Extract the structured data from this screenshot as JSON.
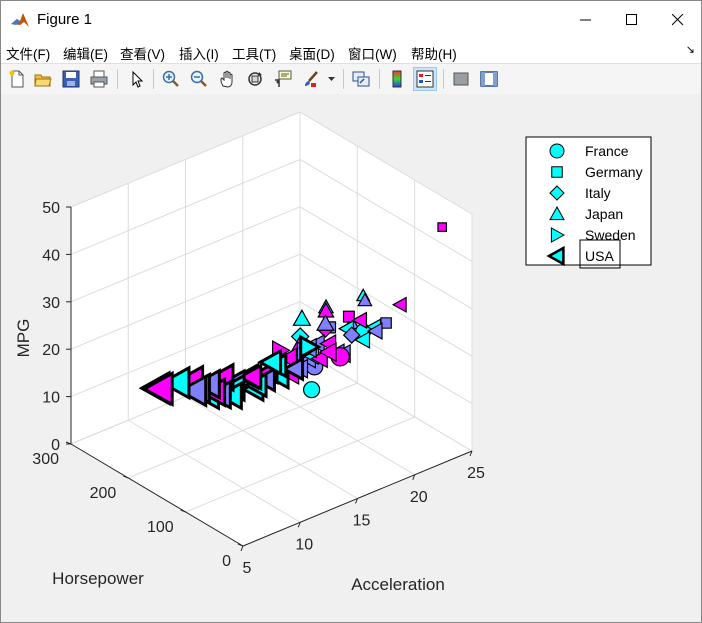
{
  "window": {
    "title": "Figure 1"
  },
  "menu": [
    {
      "label": "文件(F)"
    },
    {
      "label": "编辑(E)"
    },
    {
      "label": "查看(V)"
    },
    {
      "label": "插入(I)"
    },
    {
      "label": "工具(T)"
    },
    {
      "label": "桌面(D)"
    },
    {
      "label": "窗口(W)"
    },
    {
      "label": "帮助(H)"
    }
  ],
  "toolbar_icons": [
    "new-figure-icon",
    "open-file-icon",
    "save-icon",
    "print-icon",
    "pointer-icon",
    "zoom-in-icon",
    "zoom-out-icon",
    "pan-icon",
    "rotate-3d-icon",
    "data-cursor-icon",
    "brush-icon",
    "link-plot-icon",
    "colorbar-icon",
    "legend-icon",
    "hide-plot-tools-icon",
    "show-plot-tools-icon"
  ],
  "colors": {
    "cyan": "#00ffff",
    "magenta": "#ff00ff",
    "periwinkle": "#8080ff",
    "edge": "#000000"
  },
  "chart_data": {
    "type": "scatter",
    "projection": "3d",
    "xlabel": "Acceleration",
    "ylabel": "Horsepower",
    "zlabel": "MPG",
    "xlim": [
      5,
      25
    ],
    "ylim": [
      0,
      300
    ],
    "zlim": [
      0,
      50
    ],
    "xticks": [
      "5",
      "10",
      "15",
      "20",
      "25"
    ],
    "yticks": [
      "0",
      "100",
      "200",
      "300"
    ],
    "zticks": [
      "0",
      "10",
      "20",
      "30",
      "40",
      "50"
    ],
    "grid": true,
    "legend_position": "top-right",
    "legend": [
      {
        "label": "France",
        "marker": "circle"
      },
      {
        "label": "Germany",
        "marker": "square"
      },
      {
        "label": "Italy",
        "marker": "diamond"
      },
      {
        "label": "Japan",
        "marker": "triangle-up"
      },
      {
        "label": "Sweden",
        "marker": "triangle-right"
      },
      {
        "label": "USA",
        "marker": "triangle-left"
      }
    ],
    "series": [
      {
        "name": "France",
        "marker": "circle",
        "points": [
          [
            15.5,
            90,
            16
          ],
          [
            19.0,
            110,
            18
          ],
          [
            16.0,
            95,
            20
          ],
          [
            19.5,
            80,
            25
          ]
        ]
      },
      {
        "name": "Germany",
        "marker": "square",
        "points": [
          [
            24.8,
            48,
            44
          ],
          [
            21.0,
            70,
            26
          ],
          [
            14.0,
            88,
            22
          ],
          [
            18.0,
            75,
            30
          ],
          [
            16.5,
            78,
            29
          ]
        ]
      },
      {
        "name": "Italy",
        "marker": "diamond",
        "points": [
          [
            19.0,
            90,
            24
          ],
          [
            15.0,
            100,
            27
          ],
          [
            16.5,
            86,
            28
          ]
        ]
      },
      {
        "name": "Japan",
        "marker": "triangle-up",
        "points": [
          [
            18.5,
            60,
            35
          ],
          [
            16.5,
            85,
            32
          ],
          [
            17.0,
            96,
            28
          ],
          [
            15.0,
            97,
            31
          ],
          [
            14.5,
            88,
            27
          ],
          [
            19.0,
            67,
            33
          ],
          [
            16.0,
            75,
            34
          ],
          [
            15.5,
            110,
            24
          ],
          [
            18.0,
            70,
            29
          ]
        ]
      },
      {
        "name": "Sweden",
        "marker": "triangle-right",
        "points": [
          [
            14.0,
            115,
            24
          ],
          [
            16.0,
            112,
            22
          ],
          [
            17.0,
            125,
            21
          ]
        ]
      },
      {
        "name": "USA",
        "marker": "triangle-left",
        "points": [
          [
            12.5,
            165,
            15
          ],
          [
            13.0,
            150,
            17
          ],
          [
            11.0,
            198,
            13
          ],
          [
            11.5,
            190,
            14
          ],
          [
            10.0,
            215,
            14
          ],
          [
            9.0,
            225,
            13
          ],
          [
            8.5,
            220,
            14
          ],
          [
            10.5,
            170,
            14
          ],
          [
            12.0,
            175,
            16
          ],
          [
            14.0,
            140,
            16
          ],
          [
            15.0,
            150,
            18
          ],
          [
            13.5,
            155,
            16
          ],
          [
            12.0,
            180,
            12
          ],
          [
            12.5,
            170,
            12
          ],
          [
            14.5,
            105,
            19
          ],
          [
            15.5,
            110,
            19
          ],
          [
            16.0,
            100,
            22
          ],
          [
            17.0,
            105,
            20
          ],
          [
            15.5,
            95,
            22
          ],
          [
            18.5,
            88,
            26
          ],
          [
            19.5,
            85,
            27
          ],
          [
            16.5,
            100,
            24
          ],
          [
            13.0,
            140,
            15
          ],
          [
            14.0,
            135,
            18
          ],
          [
            11.0,
            205,
            12
          ],
          [
            12.5,
            165,
            14
          ],
          [
            15.0,
            120,
            21
          ],
          [
            16.5,
            115,
            22
          ],
          [
            20.0,
            90,
            22
          ],
          [
            22.5,
            75,
            28
          ],
          [
            21.0,
            88,
            23
          ],
          [
            20.5,
            80,
            25
          ],
          [
            10.5,
            200,
            15
          ],
          [
            18.0,
            95,
            21
          ],
          [
            14.5,
            125,
            17
          ],
          [
            17.5,
            100,
            23
          ],
          [
            19.0,
            105,
            19
          ],
          [
            13.5,
            145,
            15
          ],
          [
            11.5,
            180,
            13
          ],
          [
            16.0,
            130,
            17
          ],
          [
            15.0,
            140,
            18
          ],
          [
            18.0,
            110,
            20
          ]
        ]
      }
    ]
  }
}
